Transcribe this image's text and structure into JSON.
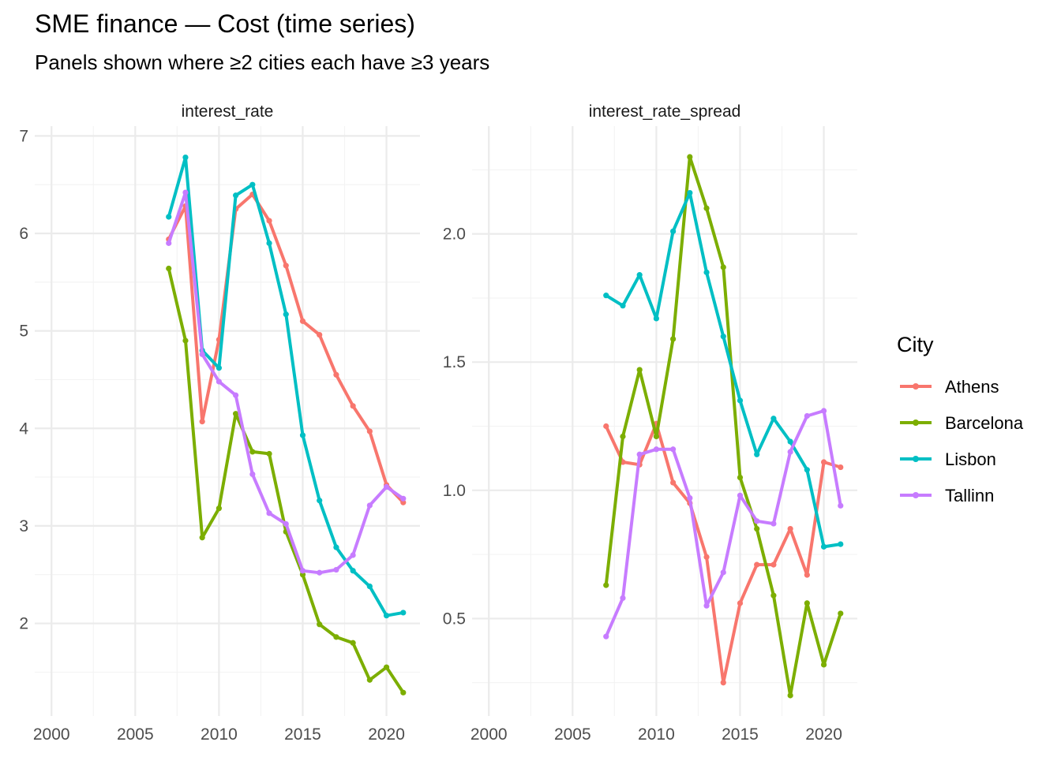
{
  "title": "SME finance — Cost (time series)",
  "subtitle": "Panels shown where ≥2 cities each have ≥3 years",
  "legend": {
    "title": "City",
    "placement": "right",
    "entries": [
      {
        "name": "Athens",
        "color": "#F8766D"
      },
      {
        "name": "Barcelona",
        "color": "#7CAE00"
      },
      {
        "name": "Lisbon",
        "color": "#00BFC4"
      },
      {
        "name": "Tallinn",
        "color": "#C77CFF"
      }
    ]
  },
  "chart_data": [
    {
      "type": "line",
      "title": "interest_rate",
      "xlabel": "",
      "ylabel": "",
      "xlim": [
        1999,
        2022
      ],
      "ylim": [
        1.05,
        7.1
      ],
      "x_ticks": [
        2000,
        2005,
        2010,
        2015,
        2020
      ],
      "y_ticks": [
        2,
        3,
        4,
        5,
        6,
        7
      ],
      "y_tick_labels": [
        "2",
        "3",
        "4",
        "5",
        "6",
        "7"
      ],
      "grid": true,
      "x": [
        2007,
        2008,
        2009,
        2010,
        2011,
        2012,
        2013,
        2014,
        2015,
        2016,
        2017,
        2018,
        2019,
        2020,
        2021
      ],
      "series": [
        {
          "name": "Athens",
          "values": [
            5.94,
            6.28,
            4.07,
            4.91,
            6.25,
            6.4,
            6.13,
            5.67,
            5.1,
            4.96,
            4.55,
            4.23,
            3.97,
            3.42,
            3.24
          ]
        },
        {
          "name": "Barcelona",
          "values": [
            5.64,
            4.9,
            2.88,
            3.18,
            4.15,
            3.76,
            3.74,
            2.94,
            2.5,
            1.99,
            1.86,
            1.8,
            1.42,
            1.55,
            1.29
          ]
        },
        {
          "name": "Lisbon",
          "values": [
            6.17,
            6.78,
            4.8,
            4.62,
            6.39,
            6.5,
            5.9,
            5.17,
            3.93,
            3.26,
            2.78,
            2.54,
            2.38,
            2.08,
            2.11
          ]
        },
        {
          "name": "Tallinn",
          "values": [
            5.9,
            6.42,
            4.76,
            4.48,
            4.34,
            3.53,
            3.13,
            3.02,
            2.54,
            2.52,
            2.55,
            2.7,
            3.21,
            3.4,
            3.28
          ]
        }
      ]
    },
    {
      "type": "line",
      "title": "interest_rate_spread",
      "xlabel": "",
      "ylabel": "",
      "xlim": [
        1999,
        2022
      ],
      "ylim": [
        0.12,
        2.42
      ],
      "x_ticks": [
        2000,
        2005,
        2010,
        2015,
        2020
      ],
      "y_ticks": [
        0.5,
        1.0,
        1.5,
        2.0
      ],
      "y_tick_labels": [
        "0.5",
        "1.0",
        "1.5",
        "2.0"
      ],
      "grid": true,
      "x": [
        2007,
        2008,
        2009,
        2010,
        2011,
        2012,
        2013,
        2014,
        2015,
        2016,
        2017,
        2018,
        2019,
        2020,
        2021
      ],
      "series": [
        {
          "name": "Athens",
          "values": [
            1.25,
            1.11,
            1.1,
            1.26,
            1.03,
            0.95,
            0.74,
            0.25,
            0.56,
            0.71,
            0.71,
            0.85,
            0.67,
            1.11,
            1.09
          ]
        },
        {
          "name": "Barcelona",
          "values": [
            0.63,
            1.21,
            1.47,
            1.21,
            1.59,
            2.3,
            2.1,
            1.87,
            1.05,
            0.85,
            0.59,
            0.2,
            0.56,
            0.32,
            0.52
          ]
        },
        {
          "name": "Lisbon",
          "values": [
            1.76,
            1.72,
            1.84,
            1.67,
            2.01,
            2.16,
            1.85,
            1.6,
            1.35,
            1.14,
            1.28,
            1.19,
            1.08,
            0.78,
            0.79
          ]
        },
        {
          "name": "Tallinn",
          "values": [
            0.43,
            0.58,
            1.14,
            1.16,
            1.16,
            0.97,
            0.55,
            0.68,
            0.98,
            0.88,
            0.87,
            1.15,
            1.29,
            1.31,
            0.94
          ]
        }
      ]
    }
  ]
}
